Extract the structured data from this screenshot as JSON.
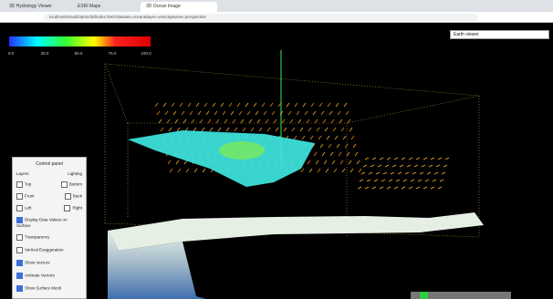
{
  "browser": {
    "tabs": [
      "3D Hydrology Viewer",
      "ESRI Maps",
      "3D Ocean Image"
    ],
    "url": "localhost/visualization/3d/index.html?dataset=ocean&layer=velocity&view=perspective"
  },
  "viewer": {
    "dropdown": "Earth viewer",
    "colorbar_labels": [
      "0.0",
      "25.0",
      "50.0",
      "75.0",
      "100.0"
    ]
  },
  "panel": {
    "title": "Control panel",
    "headers": [
      "Layers",
      "Lighting"
    ],
    "checkboxes": [
      [
        "Top",
        "Bottom"
      ],
      [
        "Front",
        "Back"
      ],
      [
        "Left",
        "Right"
      ]
    ],
    "options": [
      "Display Data Values on Surface",
      "Transparency",
      "Vertical Exaggeration",
      "Show Vectors",
      "Animate Vectors",
      "Show Surface Mesh"
    ]
  }
}
